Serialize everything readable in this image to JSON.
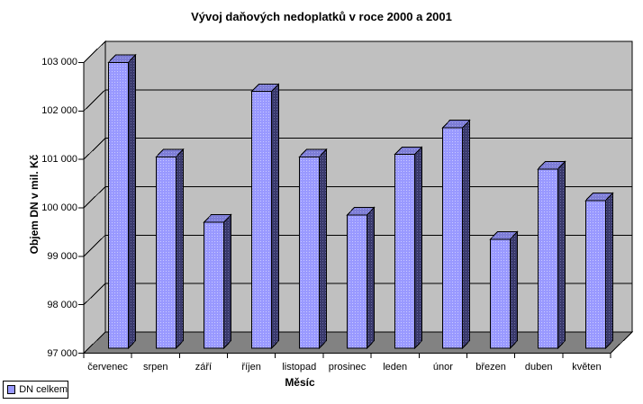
{
  "title": "Vývoj daňových nedoplatků v roce 2000 a 2001",
  "legend": {
    "label": "DN celkem"
  },
  "colors": {
    "background": "#FFFFFF",
    "wall": "#C0C0C0",
    "floor": "#828282",
    "line": "#000000",
    "bar_front": "#9999FF",
    "bar_front_dot": "#C9C9FF",
    "bar_side": "#39396B",
    "bar_side_dot": "#6B6BA3",
    "bar_top": "#7D7DD6",
    "bar_top_dot": "#A6A6E6",
    "legend_swatch": "#9999FF"
  },
  "chart_data": {
    "type": "bar",
    "style": "3d-column",
    "title": "Vývoj daňových nedoplatků v roce 2000 a 2001",
    "xlabel": "Měsíc",
    "ylabel": "Objem DN v mil. Kč",
    "categories": [
      "červenec",
      "srpen",
      "září",
      "říjen",
      "listopad",
      "prosinec",
      "leden",
      "únor",
      "březen",
      "duben",
      "květen"
    ],
    "series": [
      {
        "name": "DN celkem",
        "values": [
          102900,
          100950,
          99600,
          102300,
          100950,
          99750,
          101000,
          101550,
          99250,
          100700,
          100050
        ]
      }
    ],
    "ylim": [
      97000,
      103000
    ],
    "ytick_step": 1000,
    "ytick_labels": [
      "103 000",
      "102 000",
      "101 000",
      "100 000",
      "99 000",
      "98 000",
      "97 000"
    ],
    "grid": true,
    "legend_position": "bottom-left"
  }
}
